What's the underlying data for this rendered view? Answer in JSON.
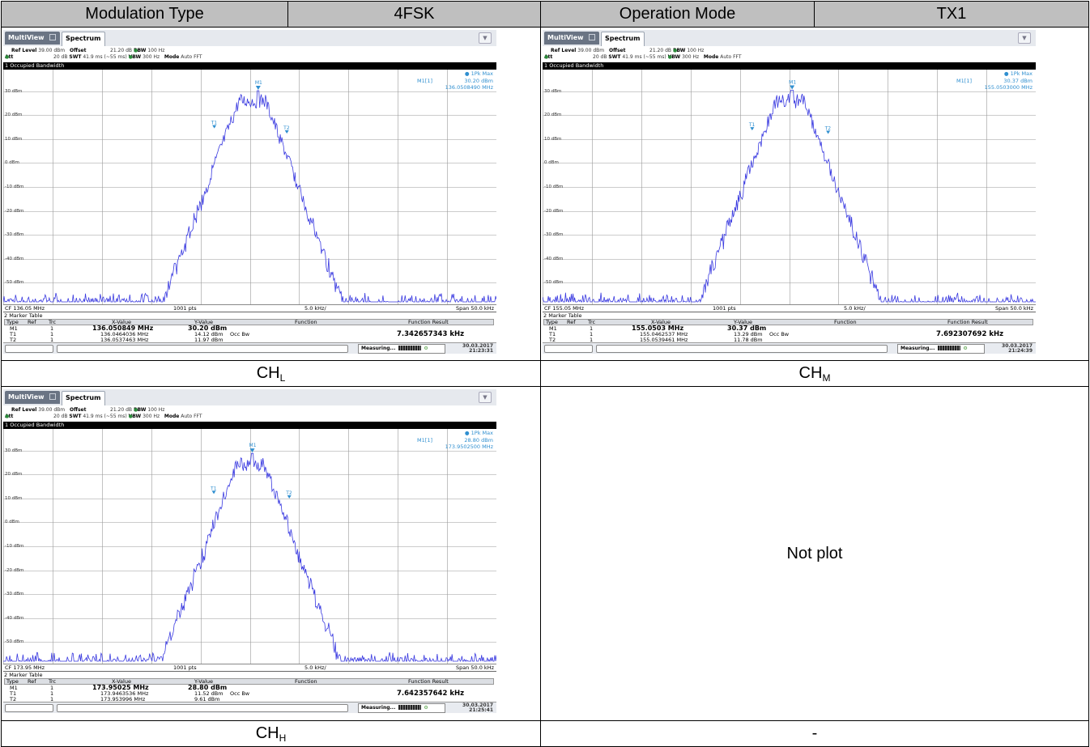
{
  "header": {
    "mod_type_label": "Modulation Type",
    "mod_type_value": "4FSK",
    "op_mode_label": "Operation Mode",
    "op_mode_value": "TX1"
  },
  "labels": {
    "ch_l": {
      "main": "CH",
      "sub": "L"
    },
    "ch_m": {
      "main": "CH",
      "sub": "M"
    },
    "ch_h": {
      "main": "CH",
      "sub": "H"
    },
    "dash": "-",
    "not_plot": "Not plot"
  },
  "screenshots": [
    {
      "tab_multiview": "MultiView",
      "tab_spectrum": "Spectrum",
      "ref_level_label": "Ref Level",
      "ref_level": "39.00 dBm",
      "offset_label": "Offset",
      "offset": "21.20 dB",
      "rbw_label": "RBW",
      "rbw": "100 Hz",
      "att_label": "Att",
      "att": "20 dB",
      "swt_label": "SWT",
      "swt": "41.9 ms (~55 ms)",
      "vbw_label": "VBW",
      "vbw": "300 Hz",
      "mode_label": "Mode",
      "mode": "Auto FFT",
      "bw_title": "1 Occupied Bandwidth",
      "trace_mode": "1Pk Max",
      "marker_name": "M1[1]",
      "marker_level": "30.20 dBm",
      "marker_freq": "136.0508490 MHz",
      "y_ticks": [
        "30 dBm",
        "20 dBm",
        "10 dBm",
        "0 dBm",
        "-10 dBm",
        "-20 dBm",
        "-30 dBm",
        "-40 dBm",
        "-50 dBm"
      ],
      "cf": "CF 136.05 MHz",
      "pts": "1001 pts",
      "div": "5.0 kHz/",
      "span": "Span 50.0 kHz",
      "table_title": "2 Marker Table",
      "col_type": "Type",
      "col_ref": "Ref",
      "col_trc": "Trc",
      "col_x": "X-Value",
      "col_y": "Y-Value",
      "col_fn": "Function",
      "col_fr": "Function Result",
      "rows": [
        {
          "type": "M1",
          "trc": "1",
          "x": "136.050849 MHz",
          "y": "30.20 dBm",
          "fn": "",
          "fr": ""
        },
        {
          "type": "T1",
          "trc": "1",
          "x": "136.0464036 MHz",
          "y": "14.12 dBm",
          "fn": "Occ Bw",
          "fr": "7.342657343 kHz"
        },
        {
          "type": "T2",
          "trc": "1",
          "x": "136.0537463 MHz",
          "y": "11.97 dBm",
          "fn": "",
          "fr": ""
        }
      ],
      "status": "Measuring...",
      "date": "30.03.2017",
      "time": "21:23:31",
      "chart_data": {
        "type": "line",
        "x_range_khz": [
          -25,
          25
        ],
        "ylim": [
          -59,
          39
        ],
        "peak_dbm": 30.2,
        "peak_x_khz": 0.85,
        "occupied_bw_khz": 7.342657343,
        "t1_x_khz": -3.6,
        "t2_x_khz": 3.75,
        "noise_floor_dbm": -56
      }
    },
    {
      "tab_multiview": "MultiView",
      "tab_spectrum": "Spectrum",
      "ref_level_label": "Ref Level",
      "ref_level": "39.00 dBm",
      "offset_label": "Offset",
      "offset": "21.20 dB",
      "rbw_label": "RBW",
      "rbw": "100 Hz",
      "att_label": "Att",
      "att": "20 dB",
      "swt_label": "SWT",
      "swt": "41.9 ms (~55 ms)",
      "vbw_label": "VBW",
      "vbw": "300 Hz",
      "mode_label": "Mode",
      "mode": "Auto FFT",
      "bw_title": "1 Occupied Bandwidth",
      "trace_mode": "1Pk Max",
      "marker_name": "M1[1]",
      "marker_level": "30.37 dBm",
      "marker_freq": "155.0503000 MHz",
      "y_ticks": [
        "30 dBm",
        "20 dBm",
        "10 dBm",
        "0 dBm",
        "-10 dBm",
        "-20 dBm",
        "-30 dBm",
        "-40 dBm",
        "-50 dBm"
      ],
      "cf": "CF 155.05 MHz",
      "pts": "1001 pts",
      "div": "5.0 kHz/",
      "span": "Span 50.0 kHz",
      "table_title": "2 Marker Table",
      "col_type": "Type",
      "col_ref": "Ref",
      "col_trc": "Trc",
      "col_x": "X-Value",
      "col_y": "Y-Value",
      "col_fn": "Function",
      "col_fr": "Function Result",
      "rows": [
        {
          "type": "M1",
          "trc": "1",
          "x": "155.0503 MHz",
          "y": "30.37 dBm",
          "fn": "",
          "fr": ""
        },
        {
          "type": "T1",
          "trc": "1",
          "x": "155.0462537 MHz",
          "y": "13.29 dBm",
          "fn": "Occ Bw",
          "fr": "7.692307692 kHz"
        },
        {
          "type": "T2",
          "trc": "1",
          "x": "155.0539461 MHz",
          "y": "11.78 dBm",
          "fn": "",
          "fr": ""
        }
      ],
      "status": "Measuring...",
      "date": "30.03.2017",
      "time": "21:24:39",
      "chart_data": {
        "type": "line",
        "x_range_khz": [
          -25,
          25
        ],
        "ylim": [
          -59,
          39
        ],
        "peak_dbm": 30.37,
        "peak_x_khz": 0.3,
        "occupied_bw_khz": 7.692307692,
        "t1_x_khz": -3.75,
        "t2_x_khz": 3.95,
        "noise_floor_dbm": -56
      }
    },
    {
      "tab_multiview": "MultiView",
      "tab_spectrum": "Spectrum",
      "ref_level_label": "Ref Level",
      "ref_level": "39.00 dBm",
      "offset_label": "Offset",
      "offset": "21.20 dB",
      "rbw_label": "RBW",
      "rbw": "100 Hz",
      "att_label": "Att",
      "att": "20 dB",
      "swt_label": "SWT",
      "swt": "41.9 ms (~55 ms)",
      "vbw_label": "VBW",
      "vbw": "300 Hz",
      "mode_label": "Mode",
      "mode": "Auto FFT",
      "bw_title": "1 Occupied Bandwidth",
      "trace_mode": "1Pk Max",
      "marker_name": "M1[1]",
      "marker_level": "28.80 dBm",
      "marker_freq": "173.9502500 MHz",
      "y_ticks": [
        "30 dBm",
        "20 dBm",
        "10 dBm",
        "0 dBm",
        "-10 dBm",
        "-20 dBm",
        "-30 dBm",
        "-40 dBm",
        "-50 dBm"
      ],
      "cf": "CF 173.95 MHz",
      "pts": "1001 pts",
      "div": "5.0 kHz/",
      "span": "Span 50.0 kHz",
      "table_title": "2 Marker Table",
      "col_type": "Type",
      "col_ref": "Ref",
      "col_trc": "Trc",
      "col_x": "X-Value",
      "col_y": "Y-Value",
      "col_fn": "Function",
      "col_fr": "Function Result",
      "rows": [
        {
          "type": "M1",
          "trc": "1",
          "x": "173.95025 MHz",
          "y": "28.80 dBm",
          "fn": "",
          "fr": ""
        },
        {
          "type": "T1",
          "trc": "1",
          "x": "173.9463536 MHz",
          "y": "11.52 dBm",
          "fn": "Occ Bw",
          "fr": "7.642357642 kHz"
        },
        {
          "type": "T2",
          "trc": "1",
          "x": "173.953996 MHz",
          "y": "9.61 dBm",
          "fn": "",
          "fr": ""
        }
      ],
      "status": "Measuring...",
      "date": "30.03.2017",
      "time": "21:25:41",
      "chart_data": {
        "type": "line",
        "x_range_khz": [
          -25,
          25
        ],
        "ylim": [
          -59,
          39
        ],
        "peak_dbm": 28.8,
        "peak_x_khz": 0.25,
        "occupied_bw_khz": 7.642357642,
        "t1_x_khz": -3.65,
        "t2_x_khz": 4.0,
        "noise_floor_dbm": -56
      }
    }
  ]
}
